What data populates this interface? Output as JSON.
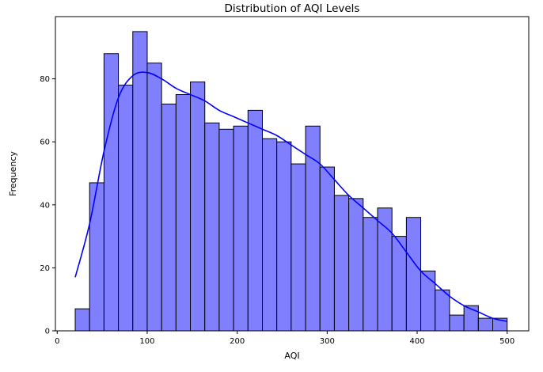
{
  "chart_data": {
    "type": "bar",
    "subtype": "histogram-with-kde",
    "title": "Distribution of AQI Levels",
    "xlabel": "AQI",
    "ylabel": "Frequency",
    "xlim": [
      -2,
      524
    ],
    "ylim": [
      0,
      99.75
    ],
    "xticks": [
      0,
      100,
      200,
      300,
      400,
      500
    ],
    "yticks": [
      0,
      20,
      40,
      60,
      80
    ],
    "grid": false,
    "legend": "none",
    "bins": {
      "edges": [
        20,
        36,
        52,
        68,
        84,
        100,
        116,
        132,
        148,
        164,
        180,
        196,
        212,
        228,
        244,
        260,
        276,
        292,
        308,
        324,
        340,
        356,
        372,
        388,
        404,
        420,
        436,
        452,
        468,
        484,
        500
      ],
      "counts": [
        7,
        47,
        88,
        78,
        95,
        85,
        72,
        75,
        79,
        66,
        64,
        65,
        70,
        61,
        60,
        53,
        65,
        52,
        43,
        42,
        36,
        39,
        30,
        36,
        19,
        13,
        5,
        8,
        4,
        4
      ]
    },
    "kde": {
      "x": [
        20,
        36,
        52,
        68,
        84,
        100,
        116,
        132,
        148,
        164,
        180,
        196,
        212,
        228,
        244,
        260,
        276,
        292,
        308,
        324,
        340,
        356,
        372,
        388,
        404,
        420,
        436,
        452,
        468,
        484,
        500
      ],
      "y": [
        17,
        34,
        57,
        74,
        81,
        82,
        80,
        77,
        75,
        73,
        70,
        68,
        66,
        64,
        62,
        59,
        56,
        53,
        48,
        43,
        39,
        35,
        31,
        25,
        19,
        15,
        11,
        8,
        6,
        4,
        3
      ]
    },
    "colors": {
      "bar_fill": "#8080ff",
      "bar_edge": "#000000",
      "kde_line": "#0000ff"
    }
  }
}
